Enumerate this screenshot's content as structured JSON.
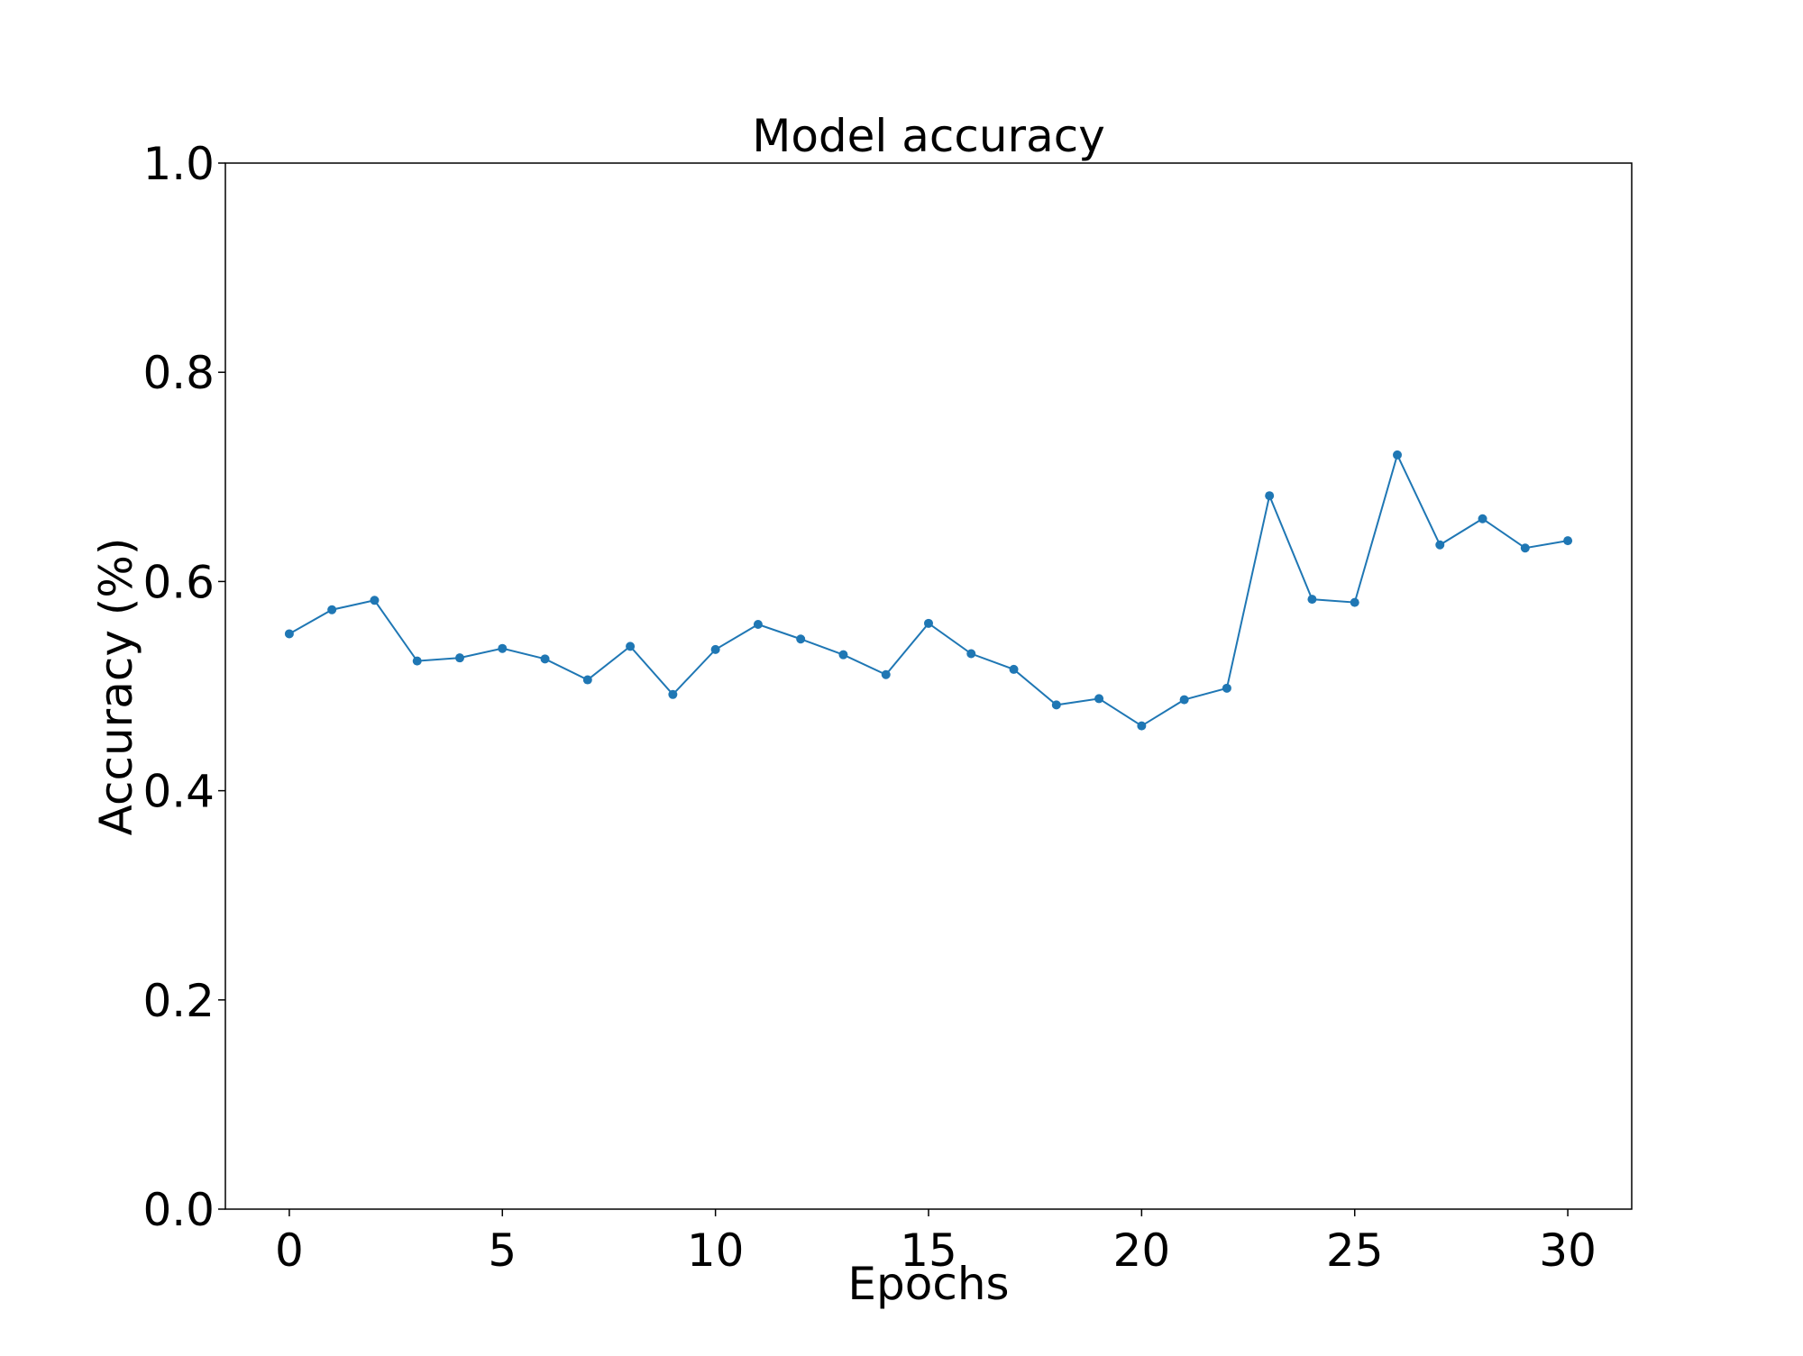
{
  "chart_data": {
    "type": "line",
    "title": "Model accuracy",
    "xlabel": "Epochs",
    "ylabel": "Accuracy (%)",
    "xlim": [
      -1.5,
      31.5
    ],
    "ylim": [
      0.0,
      1.0
    ],
    "xticks": [
      0,
      5,
      10,
      15,
      20,
      25,
      30
    ],
    "xtick_labels": [
      "0",
      "5",
      "10",
      "15",
      "20",
      "25",
      "30"
    ],
    "yticks": [
      0.0,
      0.2,
      0.4,
      0.6,
      0.8,
      1.0
    ],
    "ytick_labels": [
      "0.0",
      "0.2",
      "0.4",
      "0.6",
      "0.8",
      "1.0"
    ],
    "grid": false,
    "color": "#1f77b4",
    "series": [
      {
        "x": [
          0,
          1,
          2,
          3,
          4,
          5,
          6,
          7,
          8,
          9,
          10,
          11,
          12,
          13,
          14,
          15,
          16,
          17,
          18,
          19,
          20,
          21,
          22,
          23,
          24,
          25,
          26,
          27,
          28,
          29,
          30
        ],
        "values": [
          0.55,
          0.573,
          0.582,
          0.524,
          0.527,
          0.536,
          0.526,
          0.506,
          0.538,
          0.492,
          0.535,
          0.559,
          0.545,
          0.53,
          0.511,
          0.56,
          0.531,
          0.516,
          0.482,
          0.488,
          0.462,
          0.487,
          0.498,
          0.682,
          0.583,
          0.58,
          0.721,
          0.635,
          0.66,
          0.632,
          0.639
        ]
      }
    ]
  }
}
